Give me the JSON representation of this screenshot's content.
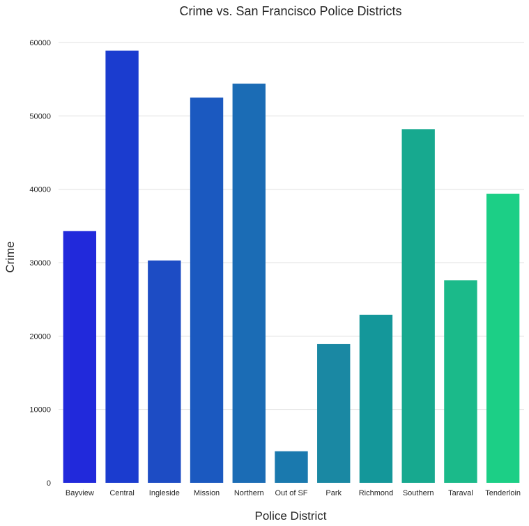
{
  "chart_data": {
    "type": "bar",
    "title": "Crime vs. San Francisco Police Districts",
    "xlabel": "Police District",
    "ylabel": "Crime",
    "categories": [
      "Bayview",
      "Central",
      "Ingleside",
      "Mission",
      "Northern",
      "Out of SF",
      "Park",
      "Richmond",
      "Southern",
      "Taraval",
      "Tenderloin"
    ],
    "values": [
      34300,
      58900,
      30300,
      52500,
      54400,
      4300,
      18900,
      22900,
      48200,
      27600,
      39400
    ],
    "colors": [
      "#2129db",
      "#1b3ccf",
      "#1d4cc4",
      "#1b59c0",
      "#1b6cb5",
      "#1a79ae",
      "#1a88a3",
      "#14979a",
      "#17a98f",
      "#1bba8a",
      "#1ccf86"
    ],
    "yticks": [
      0,
      10000,
      20000,
      30000,
      40000,
      50000,
      60000
    ],
    "ylim": [
      0,
      62000
    ],
    "grid": true,
    "legend": "none"
  }
}
